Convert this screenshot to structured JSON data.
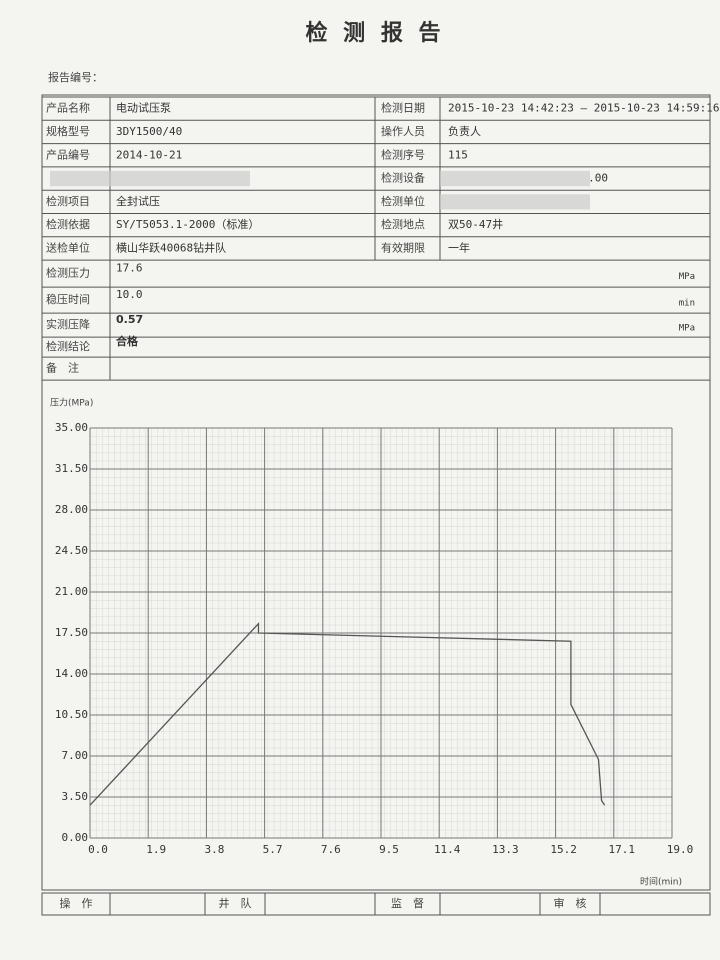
{
  "title": "检 测 报 告",
  "report_no_label": "报告编号：",
  "table": {
    "rows": [
      {
        "left": {
          "label": "产品名称",
          "value": "电动试压泵"
        },
        "right": {
          "label": "检测日期",
          "value": "2015-10-23 14:42:23  –  2015-10-23 14:59:16"
        }
      },
      {
        "left": {
          "label": "规格型号",
          "value": "3DY1500/40"
        },
        "right": {
          "label": "操作人员",
          "value": "负责人"
        }
      },
      {
        "left": {
          "label": "产品编号",
          "value": "2014-10-21"
        },
        "right": {
          "label": "检测序号",
          "value": "115"
        }
      },
      {
        "right": {
          "label": "检测设备",
          "value": ".00"
        }
      },
      {
        "left": {
          "label": "检测项目",
          "value": "全封试压"
        },
        "right": {
          "label": "检测单位"
        }
      },
      {
        "left": {
          "label": "检测依据",
          "value": "SY/T5053.1-2000（标准）"
        },
        "right": {
          "label": "检测地点",
          "value": "双50-47井"
        }
      },
      {
        "left": {
          "label": "送检单位",
          "value": "横山华跃40068钻井队"
        },
        "right": {
          "label": "有效期限",
          "value": "一年"
        }
      }
    ],
    "full_rows": [
      {
        "label": "检测压力",
        "value": "17.6",
        "unit": "MPa"
      },
      {
        "label": "稳压时间",
        "value": "10.0",
        "unit": "min"
      },
      {
        "label": "实测压降",
        "value": "0.57",
        "unit": "MPa"
      },
      {
        "label": "检测结论",
        "value": "合格"
      },
      {
        "label": "备　注"
      }
    ]
  },
  "chart_data": {
    "type": "line",
    "y_label": "压力(MPa)",
    "x_label": "时间(min)",
    "color": "#555",
    "x": [
      0.0,
      5.5,
      5.5,
      15.7,
      15.7,
      16.6,
      16.7,
      16.8
    ],
    "values": [
      2.8,
      18.3,
      17.5,
      16.8,
      11.4,
      6.7,
      3.2,
      2.8
    ],
    "xlim": [
      0,
      19
    ],
    "ylim": [
      0,
      35
    ],
    "grid": true,
    "xticks": [
      {
        "value": 0,
        "label": "0.0"
      },
      1.9,
      3.8,
      5.7,
      7.6,
      9.5,
      11.4,
      13.3,
      15.2,
      17.1,
      {
        "value": 19,
        "label": "19.0"
      }
    ],
    "yticks": [
      {
        "value": 0,
        "label": "0.00"
      },
      {
        "value": 3.5,
        "label": "3.50"
      },
      {
        "value": 7,
        "label": "7.00"
      },
      {
        "value": 10.5,
        "label": "10.50"
      },
      {
        "value": 14,
        "label": "14.00"
      },
      {
        "value": 17.5,
        "label": "17.50"
      },
      {
        "value": 21,
        "label": "21.00"
      },
      {
        "value": 24.5,
        "label": "24.50"
      },
      {
        "value": 28,
        "label": "28.00"
      },
      {
        "value": 31.5,
        "label": "31.50"
      },
      {
        "value": 35,
        "label": "35.00"
      }
    ]
  },
  "signatures": {
    "labels": [
      "操　作",
      "井　队",
      "监　督",
      "审　核"
    ]
  }
}
